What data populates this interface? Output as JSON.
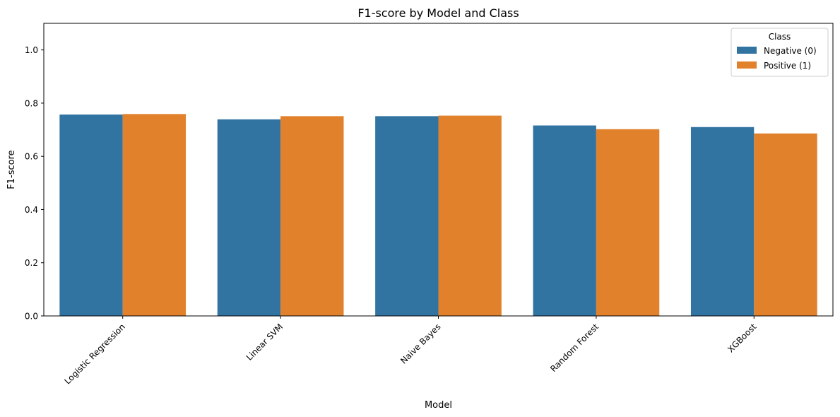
{
  "chart_data": {
    "type": "bar",
    "title": "F1-score by Model and Class",
    "xlabel": "Model",
    "ylabel": "F1-score",
    "categories": [
      "Logistic Regression",
      "Linear SVM",
      "Naive Bayes",
      "Random Forest",
      "XGBoost"
    ],
    "series": [
      {
        "name": "Negative (0)",
        "color": "#3274a1",
        "values": [
          0.757,
          0.739,
          0.751,
          0.716,
          0.71
        ]
      },
      {
        "name": "Positive (1)",
        "color": "#e1812c",
        "values": [
          0.759,
          0.751,
          0.753,
          0.702,
          0.686
        ]
      }
    ],
    "ylim": [
      0,
      1.1
    ],
    "yticks": [
      0.0,
      0.2,
      0.4,
      0.6,
      0.8,
      1.0
    ],
    "ytick_labels": [
      "0.0",
      "0.2",
      "0.4",
      "0.6",
      "0.8",
      "1.0"
    ],
    "grid": false,
    "legend": {
      "title": "Class",
      "placement": "top-right"
    }
  }
}
